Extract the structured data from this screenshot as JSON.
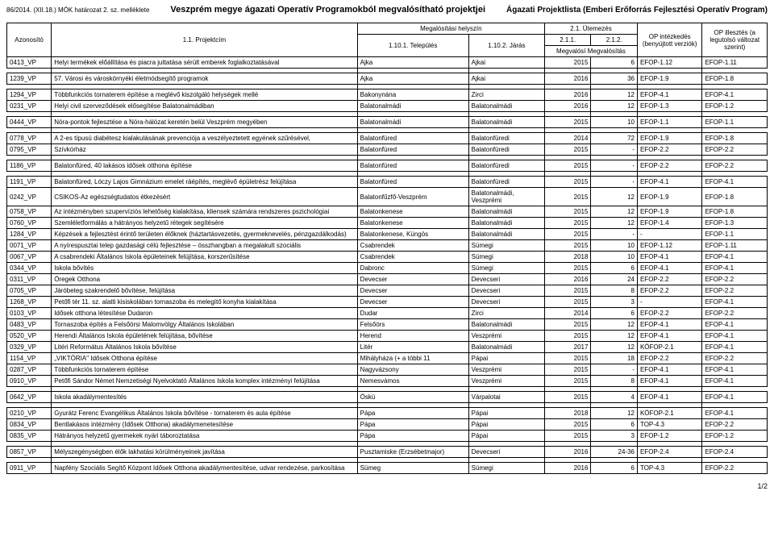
{
  "header": {
    "left": "86/2014. (XII.18.) MÖK határozat 2. sz. melléklete",
    "center": "Veszprém megye ágazati Operatív Programokból megvalósítható projektjei",
    "right": "Ágazati Projektlista (Emberi Erőforrás Fejlesztési Operatív Program)"
  },
  "thead": {
    "id": "Azonosító",
    "proj_num": "1.1. Projektcím",
    "loc_group": "Megalósítási helyszín",
    "town": "1.10.1. Település",
    "dist": "1.10.2. Járás",
    "time_group": "2.1. Ütemezés",
    "y1": "2.1.1.",
    "y2": "2.1.2.",
    "y_sub": "Megvalósí Megvalósítás",
    "op1_group": "OP intézkedés (benyújtott verziók)",
    "op2_group": "OP illesztés (a legutolsó változat szerint)"
  },
  "groups": [
    [
      [
        "0413_VP",
        "Helyi termékek előállítása és piacra juttatása sérült emberek foglalkoztatásával",
        "Ajka",
        "Ajkai",
        "2015",
        "6",
        "EFOP-1.12",
        "EFOP-1.11"
      ]
    ],
    [
      [
        "1239_VP",
        "57. Városi és városkörnyéki életmódsegítő programok",
        "Ajka",
        "Ajkai",
        "2016",
        "36",
        "EFOP-1.9",
        "EFOP-1.8"
      ]
    ],
    [
      [
        "1294_VP",
        "Többfunkciós tornaterem építése a meglévő kiszolgáló helységek mellé",
        "Bakonynána",
        "Zirci",
        "2016",
        "12",
        "EFOP-4.1",
        "EFOP-4.1"
      ],
      [
        "0231_VP",
        "Helyi civil szerveződések elősegítése Balatonalmádiban",
        "Balatonalmádi",
        "Balatonalmádi",
        "2016",
        "12",
        "EFOP-1.3",
        "EFOP-1.2"
      ]
    ],
    [
      [
        "0444_VP",
        "Nóra-pontok fejlesztése a Nóra-hálózat keretén belül Veszprém megyében",
        "Balatonalmádi",
        "Balatonalmádi",
        "2015",
        "10",
        "EFOP-1.1",
        "EFOP-1.1"
      ]
    ],
    [
      [
        "0778_VP",
        "A 2-es típusú diabétesz kialakulásának prevenciója a veszélyeztetett egyének szűrésével,",
        "Balatonfüred",
        "Balatonfüredi",
        "2014",
        "72",
        "EFOP-1.9",
        "EFOP-1.8"
      ],
      [
        "0795_VP",
        "Szívkórház",
        "Balatonfüred",
        "Balatonfüredi",
        "2015",
        "-",
        "EFOP-2.2",
        "EFOP-2.2"
      ]
    ],
    [
      [
        "1186_VP",
        "Balatonfüred, 40 lakásos idősek otthona építése",
        "Balatonfüred",
        "Balatonfüredi",
        "2015",
        "-",
        "EFOP-2.2",
        "EFOP-2.2"
      ]
    ],
    [
      [
        "1191_VP",
        "Balatonfüred, Lóczy Lajos Gimnázium emelet ráépítés, meglévő épületrész felújítása",
        "Balatonfüred",
        "Balatonfüredi",
        "2015",
        "-",
        "EFOP-4.1",
        "EFOP-4.1"
      ],
      [
        "0242_VP",
        "CSIKOS-Az egészségtudatos étkezésért",
        "Balatonfűzfő-Veszprém",
        "Balatonalmádi, Veszprémi",
        "2015",
        "12",
        "EFOP-1.9",
        "EFOP-1.8"
      ],
      [
        "0758_VP",
        "Az intézményben szupervíziós lehetőség kialakítása, kliensek számára rendszeres pszichológiai",
        "Balatonkenese",
        "Balatonalmádi",
        "2015",
        "12",
        "EFOP-1.9",
        "EFOP-1.8"
      ],
      [
        "0760_VP",
        "Szemléletformálás a hátrányos helyzetű rétegek segítésére",
        "Balatonkenese",
        "Balatonalmádi",
        "2015",
        "12",
        "EFOP-1.4",
        "EFOP-1.3"
      ],
      [
        "1284_VP",
        "Képzések a fejlesztést érintő területen élőknek (háztartásvezetés, gyermeknevelés, pénzgazdálkodás)",
        "Balatonkenese, Küngös",
        "Balatonalmádi",
        "2015",
        "-",
        "-",
        "EFOP-1.1"
      ],
      [
        "0071_VP",
        "A nyírespusztai telep gazdasági célú fejlesztése – összhangban a megalakult szociális",
        "Csabrendek",
        "Sümegi",
        "2015",
        "10",
        "EFOP-1.12",
        "EFOP-1.11"
      ],
      [
        "0067_VP",
        "A csabrendeki Általános Iskola épületeinek felújítása, korszerűsítése",
        "Csabrendek",
        "Sümegi",
        "2018",
        "10",
        "EFOP-4.1",
        "EFOP-4.1"
      ],
      [
        "0344_VP",
        "Iskola bővítés",
        "Dabronc",
        "Sümegi",
        "2015",
        "6",
        "EFOP-4.1",
        "EFOP-4.1"
      ],
      [
        "0311_VP",
        "Öregek Otthona",
        "Devecser",
        "Devecseri",
        "2016",
        "24",
        "EFOP-2.2",
        "EFOP-2.2"
      ],
      [
        "0705_VP",
        "Járóbeteg szakrendelő bővítése, felújítása",
        "Devecser",
        "Devecseri",
        "2015",
        "8",
        "EFOP-2.2",
        "EFOP-2.2"
      ],
      [
        "1268_VP",
        "Petőfi tér 11. sz. alatti kisiskolában tornaszoba és melegítő konyha kialakítása",
        "Devecser",
        "Devecseri",
        "2015",
        "3",
        "-",
        "EFOP-4.1"
      ],
      [
        "0103_VP",
        "Idősek otthona létesítése Dudaron",
        "Dudar",
        "Zirci",
        "2014",
        "6",
        "EFOP-2.2",
        "EFOP-2.2"
      ],
      [
        "0483_VP",
        "Tornaszoba építés a Felsőörsi Malomvölgy Általános Iskolában",
        "Felsőörs",
        "Balatonalmádi",
        "2015",
        "12",
        "EFOP-4.1",
        "EFOP-4.1"
      ],
      [
        "0520_VP",
        "Herendi Általános Iskola épületének felújítása, bővítése",
        "Herend",
        "Veszprémi",
        "2015",
        "12",
        "EFOP-4.1",
        "EFOP-4.1"
      ],
      [
        "0329_VP",
        "Litéri Református Általános Iskola bővítése",
        "Litér",
        "Balatonalmádi",
        "2017",
        "12",
        "KÖFOP-2.1",
        "EFOP-4.1"
      ],
      [
        "1154_VP",
        "„VIKTÓRIA\" Idősek Otthona építése",
        "Mihályháza (+ a többi 11",
        "Pápai",
        "2015",
        "18",
        "EFOP-2.2",
        "EFOP-2.2"
      ],
      [
        "0287_VP",
        "Többfunkciós tornaterem építése",
        "Nagyvázsony",
        "Veszprémi",
        "2015",
        "-",
        "EFOP-4.1",
        "EFOP-4.1"
      ],
      [
        "0910_VP",
        "Petőfi Sándor Német Nemzetiségi Nyelvoktató Általános Iskola komplex intézményi felújítása",
        "Nemesvámos",
        "Veszprémi",
        "2015",
        "8",
        "EFOP-4.1",
        "EFOP-4.1"
      ]
    ],
    [
      [
        "0642_VP",
        "Iskola akadálymentesítés",
        "Öskü",
        "Várpalotai",
        "2015",
        "4",
        "EFOP-4.1",
        "EFOP-4.1"
      ]
    ],
    [
      [
        "0210_VP",
        "Gyurátz Ferenc Evangélikus Általános Iskola bővítése - tornaterem és aula építése",
        "Pápa",
        "Pápai",
        "2018",
        "12",
        "KÖFOP-2.1",
        "EFOP-4.1"
      ],
      [
        "0834_VP",
        "Bentlakásos intézmény (Idősek Otthona) akadálymenetesítése",
        "Pápa",
        "Pápai",
        "2015",
        "6",
        "TOP-4.3",
        "EFOP-2.2"
      ],
      [
        "0835_VP",
        "Hátrányos helyzetű gyermekek nyári táboroztatása",
        "Pápa",
        "Pápai",
        "2015",
        "3",
        "EFOP-1.2",
        "EFOP-1.2"
      ]
    ],
    [
      [
        "0857_VP",
        "Mélyszegénységben élők lakhatási körülményeinek javítása",
        "Pusztamiske (Erzsébetmajor)",
        "Devecseri",
        "2016",
        "24-36",
        "EFOP-2.4",
        "EFOP-2.4"
      ]
    ],
    [
      [
        "0911_VP",
        "Napfény Szociális Segítő Központ Idősek Otthona akadálymentesítése, udvar rendezése, parkosítása",
        "Sümeg",
        "Sümegi",
        "2016",
        "6",
        "TOP-4.3",
        "EFOP-2.2"
      ]
    ]
  ],
  "pagenum": "1/2"
}
